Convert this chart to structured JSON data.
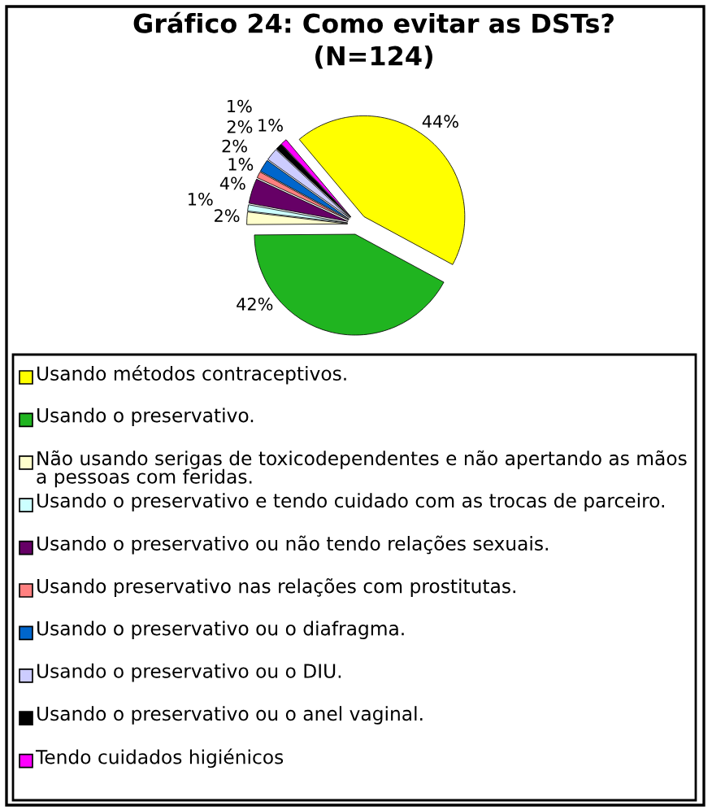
{
  "chart_data": {
    "type": "pie",
    "title": "Gráfico 24: Como evitar as DSTs?",
    "subtitle": "(N=124)",
    "categories": [
      "Usando métodos contraceptivos.",
      "Usando o preservativo.",
      "Não usando serigas de toxicodependentes e não apertando as mãos\na pessoas com feridas.",
      "Usando o preservativo e tendo cuidado com as trocas de parceiro.",
      "Usando o preservativo ou não tendo relações sexuais.",
      "Usando preservativo nas relações com prostitutas.",
      "Usando o preservativo ou o diafragma.",
      "Usando o preservativo ou o DIU.",
      "Usando o preservativo ou o anel vaginal.",
      "Tendo cuidados higiénicos"
    ],
    "values": [
      44,
      42,
      2,
      1,
      4,
      1,
      2,
      2,
      1,
      1
    ],
    "colors": [
      "#ffff00",
      "#20b420",
      "#ffffcc",
      "#ccffff",
      "#660066",
      "#ff8080",
      "#0066cc",
      "#ccccff",
      "#000000",
      "#ff00ff"
    ],
    "value_labels": [
      "44%",
      "42%",
      "2%",
      "1%",
      "4%",
      "1%",
      "2%",
      "2%",
      "1%",
      "1%"
    ],
    "legend": "bottom"
  }
}
